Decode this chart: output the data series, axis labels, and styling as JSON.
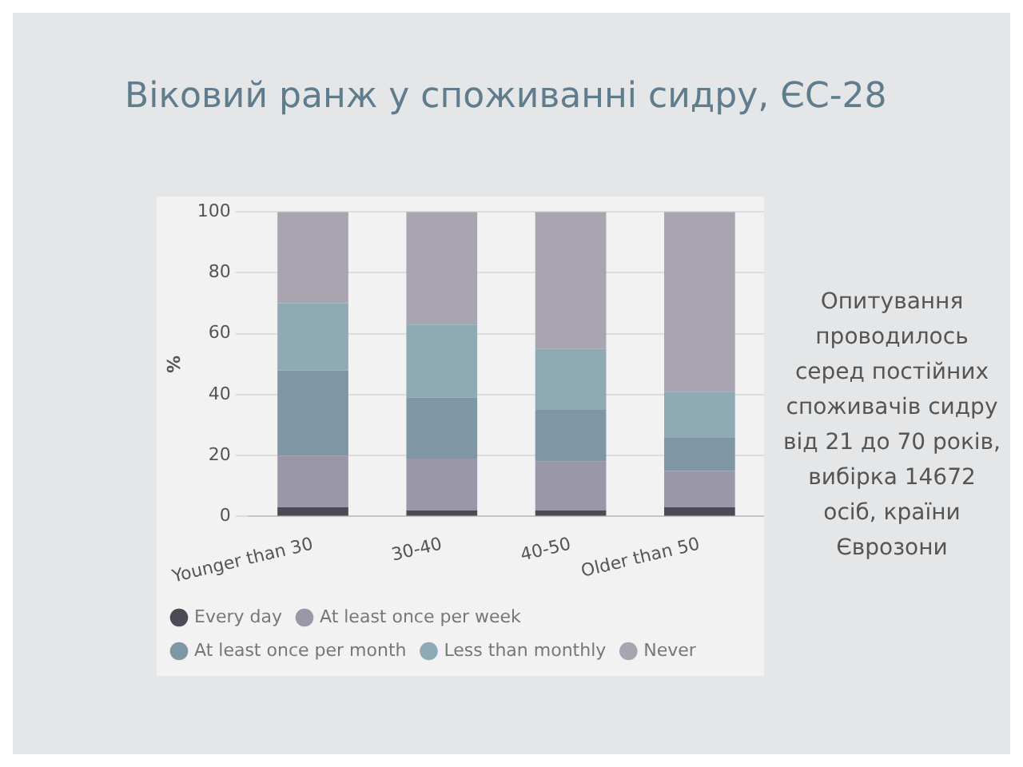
{
  "chart_data": {
    "type": "bar",
    "stacked": true,
    "title": "Віковий ранж у споживанні сидру, ЄС-28",
    "ylabel": "%",
    "categories": [
      "Younger than 30",
      "30-40",
      "40-50",
      "Older than 50"
    ],
    "series": [
      {
        "name": "Every day",
        "color": "#4d4a55",
        "values": [
          3,
          2,
          2,
          3
        ]
      },
      {
        "name": "At least once per week",
        "color": "#9a98a8",
        "values": [
          17,
          17,
          16,
          12
        ]
      },
      {
        "name": "At least once per month",
        "color": "#7f97a5",
        "values": [
          28,
          20,
          17,
          11
        ]
      },
      {
        "name": "Less than monthly",
        "color": "#8eaab5",
        "values": [
          22,
          24,
          20,
          15
        ]
      },
      {
        "name": "Never",
        "color": "#a8a5b0",
        "values": [
          30,
          37,
          45,
          59
        ]
      }
    ],
    "ylim": [
      0,
      100
    ],
    "yticks": [
      0,
      20,
      40,
      60,
      80,
      100
    ],
    "grid": "y",
    "legend": "bottom",
    "annotations": [
      "Опитування проводилось серед постійних споживачів сидру від 21 до 70 років, вибірка 14672 осіб, країни Єврозони"
    ]
  }
}
